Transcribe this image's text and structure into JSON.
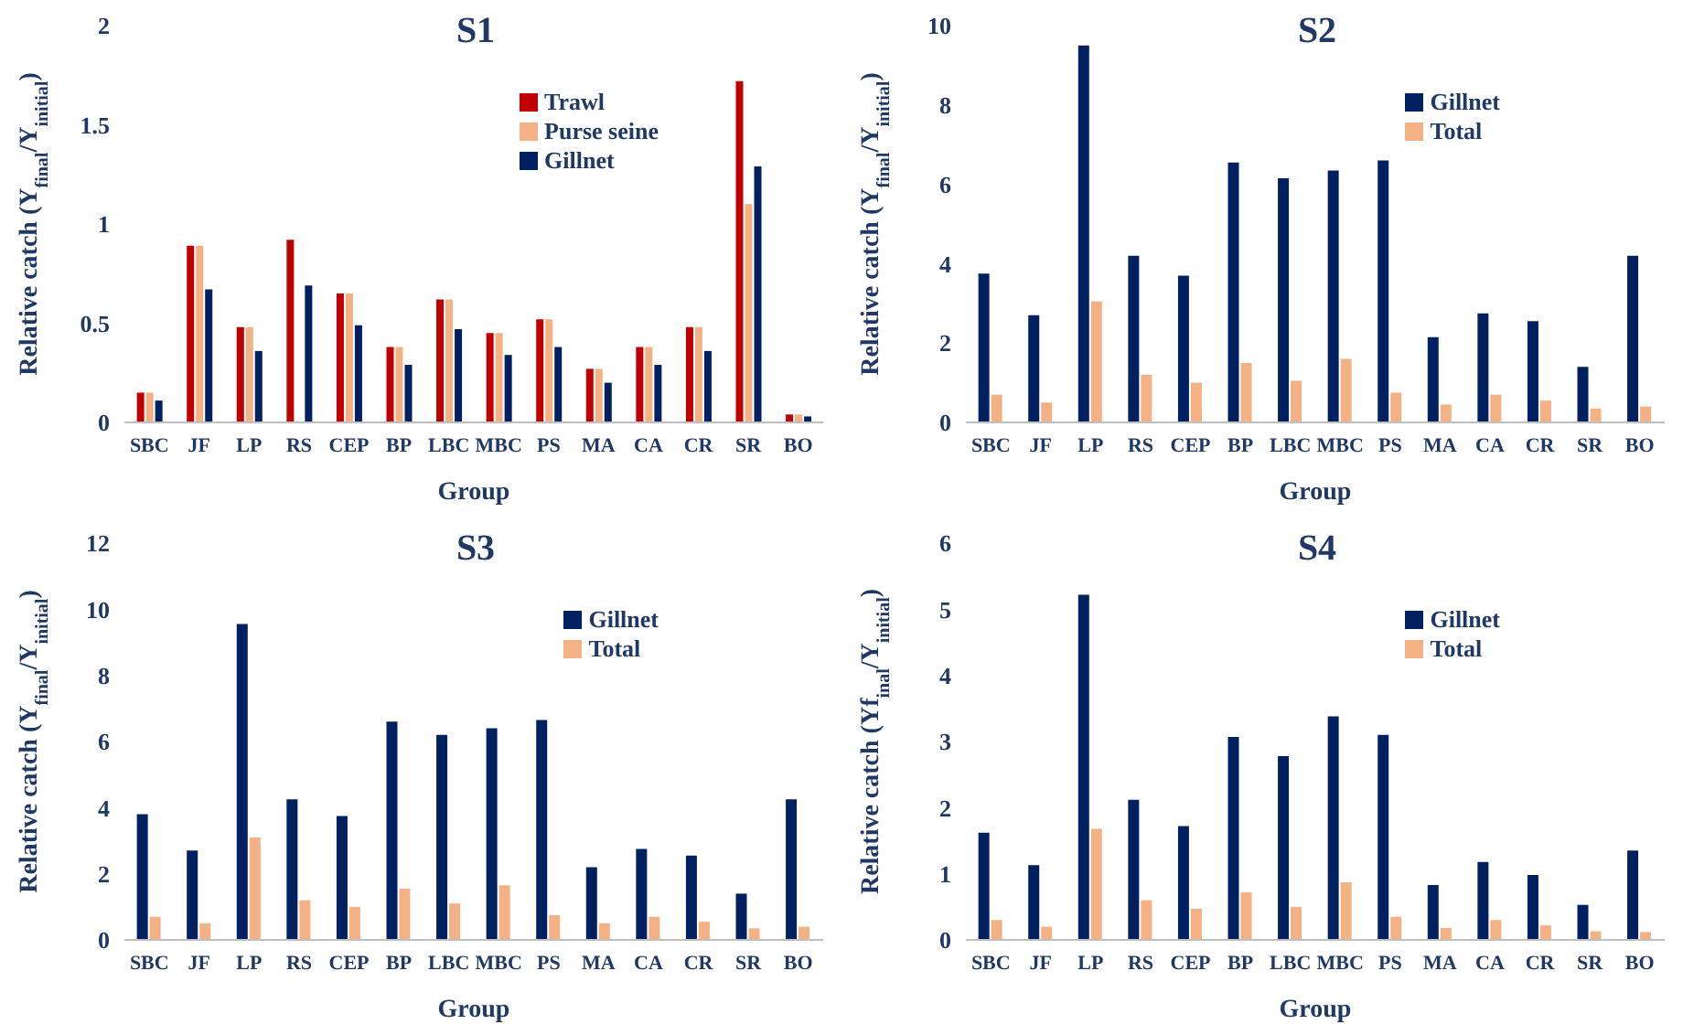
{
  "chart_data": [
    {
      "type": "bar",
      "title": "S1",
      "xlabel": "Group",
      "ylabel": "Relative catch (Y$_{final}$/Y$_{initial}$)",
      "categories": [
        "SBC",
        "JF",
        "LP",
        "RS",
        "CEP",
        "BP",
        "LBC",
        "MBC",
        "PS",
        "MA",
        "CA",
        "CR",
        "SR",
        "BO"
      ],
      "ylim": [
        0,
        2
      ],
      "yticks": [
        0,
        0.5,
        1,
        1.5,
        2
      ],
      "legend": "top right",
      "series": [
        {
          "name": "Trawl",
          "color": "#c00000",
          "values": [
            0.15,
            0.89,
            0.48,
            0.92,
            0.65,
            0.38,
            0.62,
            0.45,
            0.52,
            0.27,
            0.38,
            0.48,
            1.72,
            0.04
          ]
        },
        {
          "name": "Purse seine",
          "color": "#f4b183",
          "values": [
            0.15,
            0.89,
            0.48,
            null,
            0.65,
            0.38,
            0.62,
            0.45,
            0.52,
            0.27,
            0.38,
            0.48,
            1.1,
            0.04
          ]
        },
        {
          "name": "Gillnet",
          "color": "#002060",
          "values": [
            0.11,
            0.67,
            0.36,
            0.69,
            0.49,
            0.29,
            0.47,
            0.34,
            0.38,
            0.2,
            0.29,
            0.36,
            1.29,
            0.03
          ]
        }
      ]
    },
    {
      "type": "bar",
      "title": "S2",
      "xlabel": "Group",
      "ylabel": "Relative catch (Y$_{final}$/Y$_{initial}$)",
      "categories": [
        "SBC",
        "JF",
        "LP",
        "RS",
        "CEP",
        "BP",
        "LBC",
        "MBC",
        "PS",
        "MA",
        "CA",
        "CR",
        "SR",
        "BO"
      ],
      "ylim": [
        0,
        10
      ],
      "yticks": [
        0,
        2,
        4,
        6,
        8,
        10
      ],
      "legend": "top right",
      "series": [
        {
          "name": "Gillnet",
          "color": "#002060",
          "values": [
            3.75,
            2.7,
            9.5,
            4.2,
            3.7,
            6.55,
            6.15,
            6.35,
            6.6,
            2.15,
            2.75,
            2.55,
            1.4,
            4.2
          ]
        },
        {
          "name": "Total",
          "color": "#f4b183",
          "values": [
            0.7,
            0.5,
            3.05,
            1.2,
            1.0,
            1.5,
            1.05,
            1.6,
            0.75,
            0.45,
            0.7,
            0.55,
            0.35,
            0.4
          ]
        }
      ]
    },
    {
      "type": "bar",
      "title": "S3",
      "xlabel": "Group",
      "ylabel": "Relative catch (Y$_{final}$/Y$_{initial}$)",
      "categories": [
        "SBC",
        "JF",
        "LP",
        "RS",
        "CEP",
        "BP",
        "LBC",
        "MBC",
        "PS",
        "MA",
        "CA",
        "CR",
        "SR",
        "BO"
      ],
      "ylim": [
        0,
        12
      ],
      "yticks": [
        0,
        2,
        4,
        6,
        8,
        10,
        12
      ],
      "legend": "top right",
      "series": [
        {
          "name": "Gillnet",
          "color": "#002060",
          "values": [
            3.8,
            2.7,
            9.55,
            4.25,
            3.75,
            6.6,
            6.2,
            6.4,
            6.65,
            2.2,
            2.75,
            2.55,
            1.4,
            4.25
          ]
        },
        {
          "name": "Total",
          "color": "#f4b183",
          "values": [
            0.7,
            0.5,
            3.1,
            1.2,
            1.0,
            1.55,
            1.1,
            1.65,
            0.75,
            0.5,
            0.7,
            0.55,
            0.35,
            0.4
          ]
        }
      ]
    },
    {
      "type": "bar",
      "title": "S4",
      "xlabel": "Group",
      "ylabel": "Relative catch (Yf$_{inal}$/Y$_{initial}$)",
      "categories": [
        "SBC",
        "JF",
        "LP",
        "RS",
        "CEP",
        "BP",
        "LBC",
        "MBC",
        "PS",
        "MA",
        "CA",
        "CR",
        "SR",
        "BO"
      ],
      "ylim": [
        0,
        6
      ],
      "yticks": [
        0,
        1,
        2,
        3,
        4,
        5,
        6
      ],
      "legend": "top right",
      "series": [
        {
          "name": "Gillnet",
          "color": "#002060",
          "values": [
            1.62,
            1.13,
            5.22,
            2.12,
            1.72,
            3.07,
            2.78,
            3.38,
            3.1,
            0.83,
            1.18,
            0.98,
            0.53,
            1.35
          ]
        },
        {
          "name": "Total",
          "color": "#f4b183",
          "values": [
            0.3,
            0.2,
            1.68,
            0.6,
            0.47,
            0.72,
            0.5,
            0.87,
            0.35,
            0.18,
            0.3,
            0.22,
            0.13,
            0.12
          ]
        }
      ]
    }
  ]
}
